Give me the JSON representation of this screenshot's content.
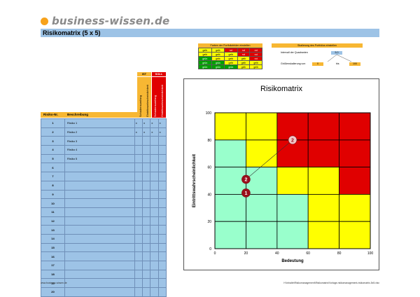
{
  "header": {
    "logo_text": "business-wissen.de",
    "title": "Risikomatrix (5 x 5)"
  },
  "colors": {
    "accent_orange": "#f7a21b",
    "title_bar": "#9dc3e6",
    "yellow": "#ffff00",
    "red": "#e00000",
    "green": "#00a000",
    "mint": "#99ffcc"
  },
  "portfolio_colors": {
    "title": "Farben der Portfoliofelder einstellen",
    "rows": [
      [
        "gelb",
        "gelb",
        "rot",
        "rot",
        "rot"
      ],
      [
        "gelb",
        "gelb",
        "gelb",
        "rot",
        "rot"
      ],
      [
        "grün",
        "gelb",
        "gelb",
        "gelb",
        "rot"
      ],
      [
        "grün",
        "grün",
        "gelb",
        "gelb",
        "gelb"
      ],
      [
        "grün",
        "grün",
        "grün",
        "gelb",
        "gelb"
      ]
    ]
  },
  "division": {
    "title": "Skalierung des Portfolios einstellen",
    "quadrant_label": "Intervall der Quadranten",
    "quadrant_value": "5,0",
    "scale_label": "Größenskalierung von",
    "scale_from": "0",
    "scale_to_label": "bis",
    "scale_to": "100"
  },
  "table": {
    "ist_label": "IST",
    "soll_label": "SOLL",
    "col_riskno": "Risiko-Nr.",
    "col_desc": "Beschreibung",
    "col_v1": "Schadensumfang",
    "col_v2": "Eintrittswahrscheinlichkeit",
    "col_v3": "Schadensumfang",
    "col_v4": "Eintrittswahrscheinlichkeit",
    "rows": [
      {
        "num": "1",
        "desc": "Risiko 1",
        "vals": [
          "x",
          "x",
          "x",
          "x"
        ]
      },
      {
        "num": "2",
        "desc": "Risiko 2",
        "vals": [
          "x",
          "x",
          "x",
          "x"
        ]
      },
      {
        "num": "3",
        "desc": "Risiko 3",
        "vals": [
          "",
          "",
          "",
          ""
        ]
      },
      {
        "num": "4",
        "desc": "Risiko 4",
        "vals": [
          "",
          "",
          "",
          ""
        ]
      },
      {
        "num": "5",
        "desc": "Risiko 5",
        "vals": [
          "",
          "",
          "",
          ""
        ]
      },
      {
        "num": "6",
        "desc": "",
        "vals": [
          "",
          "",
          "",
          ""
        ]
      },
      {
        "num": "7",
        "desc": "",
        "vals": [
          "",
          "",
          "",
          ""
        ]
      },
      {
        "num": "8",
        "desc": "",
        "vals": [
          "",
          "",
          "",
          ""
        ]
      },
      {
        "num": "9",
        "desc": "",
        "vals": [
          "",
          "",
          "",
          ""
        ]
      },
      {
        "num": "10",
        "desc": "",
        "vals": [
          "",
          "",
          "",
          ""
        ]
      },
      {
        "num": "11",
        "desc": "",
        "vals": [
          "",
          "",
          "",
          ""
        ]
      },
      {
        "num": "12",
        "desc": "",
        "vals": [
          "",
          "",
          "",
          ""
        ]
      },
      {
        "num": "13",
        "desc": "",
        "vals": [
          "",
          "",
          "",
          ""
        ]
      },
      {
        "num": "14",
        "desc": "",
        "vals": [
          "",
          "",
          "",
          ""
        ]
      },
      {
        "num": "15",
        "desc": "",
        "vals": [
          "",
          "",
          "",
          ""
        ]
      },
      {
        "num": "16",
        "desc": "",
        "vals": [
          "",
          "",
          "",
          ""
        ]
      },
      {
        "num": "17",
        "desc": "",
        "vals": [
          "",
          "",
          "",
          ""
        ]
      },
      {
        "num": "18",
        "desc": "",
        "vals": [
          "",
          "",
          "",
          ""
        ]
      },
      {
        "num": "19",
        "desc": "",
        "vals": [
          "",
          "",
          "",
          ""
        ]
      },
      {
        "num": "20",
        "desc": "",
        "vals": [
          "",
          "",
          "",
          ""
        ]
      }
    ]
  },
  "chart_data": {
    "type": "scatter",
    "title": "Risikomatrix",
    "xlabel": "Bedeutung",
    "ylabel": "Eintrittswahrscheinlichkeit",
    "xlim": [
      0,
      100
    ],
    "ylim": [
      0,
      100
    ],
    "xticks": [
      "0",
      "20",
      "40",
      "60",
      "80",
      "100"
    ],
    "yticks": [
      "0",
      "20",
      "40",
      "60",
      "80",
      "100"
    ],
    "grid": true,
    "cells": [
      [
        "gelb",
        "gelb",
        "rot",
        "rot",
        "rot"
      ],
      [
        "mint",
        "gelb",
        "rot",
        "rot",
        "rot"
      ],
      [
        "mint",
        "mint",
        "gelb",
        "gelb",
        "rot"
      ],
      [
        "mint",
        "mint",
        "mint",
        "gelb",
        "gelb"
      ],
      [
        "mint",
        "mint",
        "mint",
        "gelb",
        "gelb"
      ]
    ],
    "points": [
      {
        "label": "1",
        "x": 20,
        "y": 41,
        "kind": "ist"
      },
      {
        "label": "2",
        "x": 20,
        "y": 51,
        "kind": "ist"
      },
      {
        "label": "2",
        "x": 50,
        "y": 80,
        "kind": "soll"
      }
    ]
  },
  "footer": {
    "left": "www.business-wissen.de",
    "right": "H:\\Inhalte\\Risikomanagement\\Risikomatrix\\Vorlage-risikomanagement-risikomatrix-5x5.xlsx"
  }
}
